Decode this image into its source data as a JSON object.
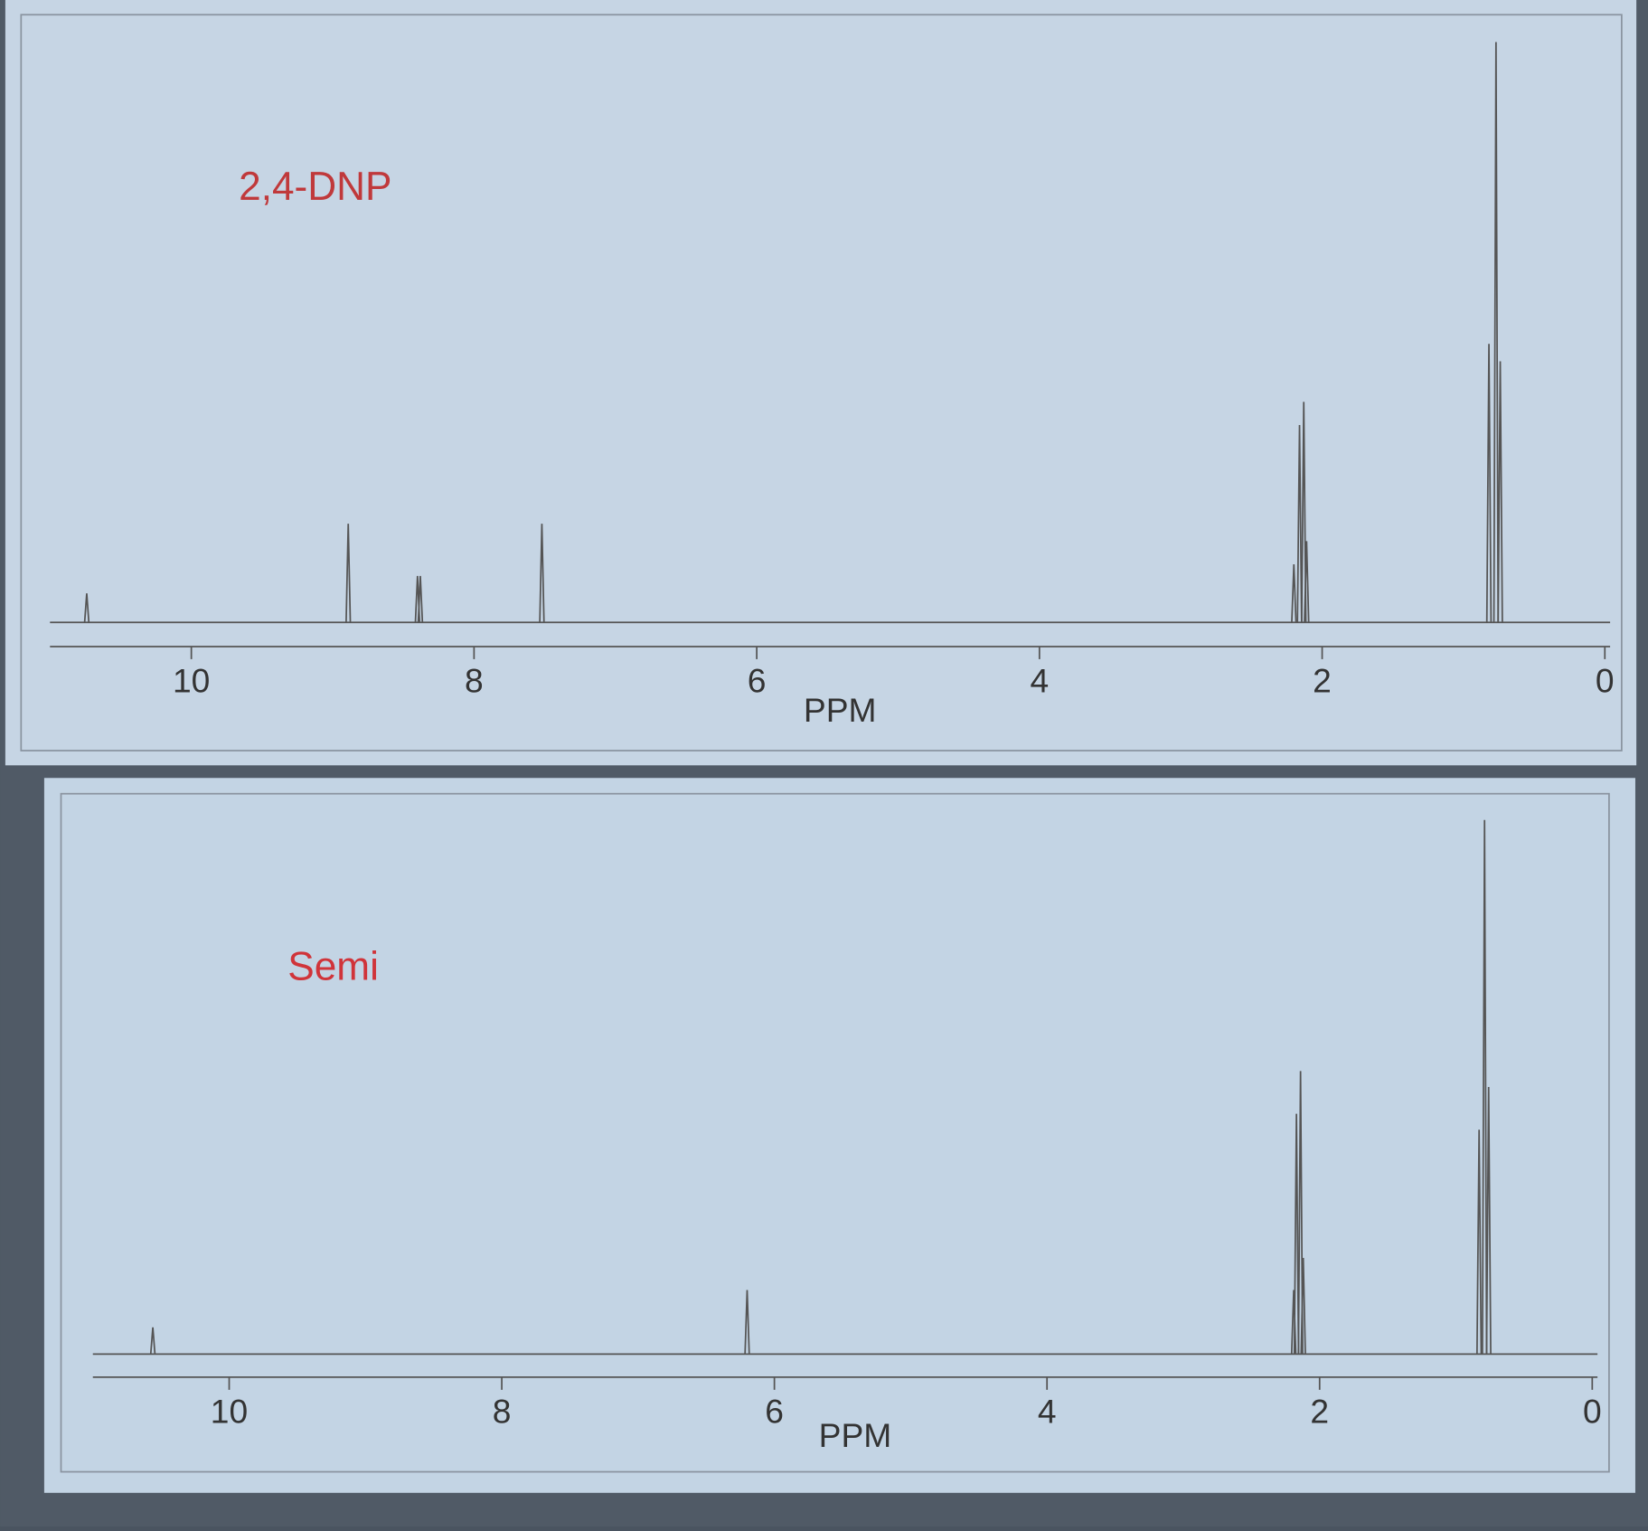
{
  "chart_data": [
    {
      "type": "stem",
      "annotation": "2,4-DNP",
      "x_label": "PPM",
      "color": "#555555",
      "annotation_color": "#c0393b",
      "x": [
        10.74,
        8.89,
        8.4,
        8.38,
        7.52,
        2.2,
        2.16,
        2.13,
        2.11,
        0.82,
        0.77,
        0.74
      ],
      "values": [
        5,
        17,
        8,
        8,
        17,
        10,
        34,
        38,
        14,
        48,
        100,
        45
      ],
      "xlim": [
        11,
        0
      ],
      "xticks": [
        10,
        8,
        6,
        4,
        2,
        0
      ],
      "ylim": [
        0,
        100
      ]
    },
    {
      "type": "stem",
      "annotation": "Semi",
      "x_label": "PPM",
      "color": "#555555",
      "annotation_color": "#d0343a",
      "x": [
        10.56,
        6.2,
        2.19,
        2.17,
        2.14,
        2.12,
        0.83,
        0.79,
        0.76
      ],
      "values": [
        5,
        12,
        12,
        45,
        53,
        18,
        42,
        100,
        50
      ],
      "xlim": [
        11,
        0
      ],
      "xticks": [
        10,
        8,
        6,
        4,
        2,
        0
      ],
      "ylim": [
        0,
        100
      ]
    }
  ]
}
